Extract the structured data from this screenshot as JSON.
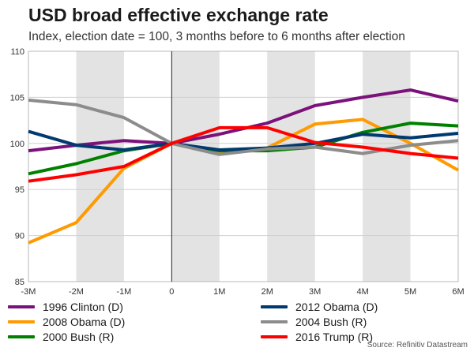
{
  "chart_data": {
    "type": "line",
    "title": "USD broad effective exchange rate",
    "subtitle": "Index, election date = 100, 3 months before to 6 months after election",
    "x": [
      -3,
      -2,
      -1,
      0,
      1,
      2,
      3,
      4,
      5,
      6
    ],
    "categories": [
      "-3M",
      "-2M",
      "-1M",
      "0",
      "1M",
      "2M",
      "3M",
      "4M",
      "5M",
      "6M"
    ],
    "ylim": [
      85,
      110
    ],
    "yticks": [
      85,
      90,
      95,
      100,
      105,
      110
    ],
    "shaded_intervals": [
      [
        -2,
        -1
      ],
      [
        0,
        1
      ],
      [
        2,
        3
      ],
      [
        4,
        5
      ]
    ],
    "series": [
      {
        "name": "1996 Clinton (D)",
        "color": "#7b127b",
        "values": [
          99.2,
          99.8,
          100.3,
          100.0,
          101.0,
          102.2,
          104.1,
          105.0,
          105.8,
          104.6
        ]
      },
      {
        "name": "2008 Obama (D)",
        "color": "#ff9a00",
        "values": [
          89.2,
          91.4,
          97.3,
          100.0,
          99.0,
          99.5,
          102.1,
          102.6,
          100.0,
          97.1
        ]
      },
      {
        "name": "2000 Bush (R)",
        "color": "#008000",
        "values": [
          96.7,
          97.8,
          99.2,
          100.0,
          99.2,
          99.2,
          99.6,
          101.2,
          102.2,
          101.9
        ]
      },
      {
        "name": "2012 Obama (D)",
        "color": "#003a70",
        "values": [
          101.3,
          99.8,
          99.3,
          100.0,
          99.3,
          99.5,
          100.0,
          101.0,
          100.6,
          101.1
        ]
      },
      {
        "name": "2004 Bush (R)",
        "color": "#8c8c8c",
        "values": [
          104.7,
          104.2,
          102.8,
          100.0,
          98.8,
          99.4,
          99.6,
          98.9,
          99.8,
          100.3
        ]
      },
      {
        "name": "2016 Trump (R)",
        "color": "#ff0000",
        "values": [
          95.9,
          96.6,
          97.5,
          100.0,
          101.7,
          101.7,
          100.1,
          99.6,
          98.9,
          98.4
        ]
      }
    ],
    "source": "Source: Refinitiv Datastream"
  }
}
